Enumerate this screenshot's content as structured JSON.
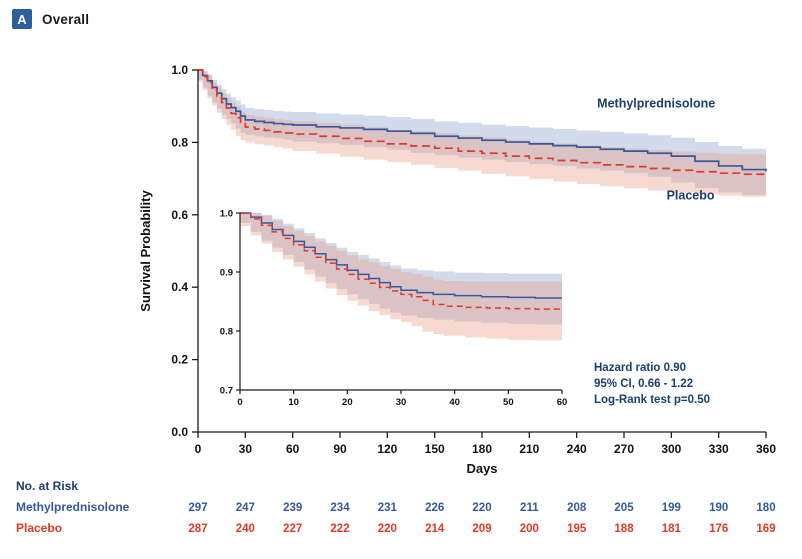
{
  "header": {
    "panel_label": "A",
    "title": "Overall"
  },
  "chart_data": {
    "type": "line",
    "subtype": "kaplan-meier",
    "title": "Overall",
    "xlabel": "Days",
    "ylabel": "Survival Probability",
    "xlim": [
      0,
      360
    ],
    "ylim": [
      0.0,
      1.0
    ],
    "xticks": [
      0,
      30,
      60,
      90,
      120,
      150,
      180,
      210,
      240,
      270,
      300,
      330,
      360
    ],
    "yticks": [
      0.0,
      0.2,
      0.4,
      0.6,
      0.8,
      1.0
    ],
    "grid": false,
    "colors": {
      "navy": "#1c3e6e",
      "axis": "#1a1a1a"
    },
    "series": [
      {
        "name": "Methylprednisolone",
        "color": "#33599f",
        "band_color": "rgba(125,152,199,0.35)",
        "style": "solid",
        "label_pos": [
          253,
          0.897
        ],
        "points": [
          [
            0,
            1.0,
            1.0,
            1.0
          ],
          [
            3,
            0.985,
            0.972,
            0.997
          ],
          [
            6,
            0.97,
            0.951,
            0.988
          ],
          [
            9,
            0.952,
            0.929,
            0.973
          ],
          [
            12,
            0.936,
            0.91,
            0.96
          ],
          [
            15,
            0.921,
            0.893,
            0.947
          ],
          [
            18,
            0.906,
            0.876,
            0.934
          ],
          [
            21,
            0.896,
            0.864,
            0.925
          ],
          [
            24,
            0.886,
            0.853,
            0.916
          ],
          [
            27,
            0.873,
            0.838,
            0.905
          ],
          [
            30,
            0.862,
            0.826,
            0.895
          ],
          [
            36,
            0.858,
            0.821,
            0.892
          ],
          [
            42,
            0.855,
            0.817,
            0.889
          ],
          [
            48,
            0.852,
            0.814,
            0.887
          ],
          [
            54,
            0.85,
            0.811,
            0.885
          ],
          [
            60,
            0.848,
            0.808,
            0.884
          ],
          [
            75,
            0.843,
            0.802,
            0.88
          ],
          [
            90,
            0.84,
            0.798,
            0.877
          ],
          [
            105,
            0.836,
            0.793,
            0.874
          ],
          [
            120,
            0.831,
            0.787,
            0.87
          ],
          [
            135,
            0.825,
            0.78,
            0.865
          ],
          [
            150,
            0.817,
            0.771,
            0.858
          ],
          [
            165,
            0.812,
            0.765,
            0.854
          ],
          [
            180,
            0.806,
            0.758,
            0.849
          ],
          [
            195,
            0.801,
            0.752,
            0.845
          ],
          [
            210,
            0.796,
            0.746,
            0.841
          ],
          [
            225,
            0.791,
            0.74,
            0.837
          ],
          [
            240,
            0.787,
            0.735,
            0.833
          ],
          [
            255,
            0.781,
            0.728,
            0.829
          ],
          [
            270,
            0.776,
            0.722,
            0.825
          ],
          [
            285,
            0.77,
            0.715,
            0.82
          ],
          [
            300,
            0.762,
            0.705,
            0.813
          ],
          [
            315,
            0.748,
            0.689,
            0.801
          ],
          [
            330,
            0.735,
            0.674,
            0.79
          ],
          [
            345,
            0.725,
            0.662,
            0.782
          ],
          [
            360,
            0.72,
            0.655,
            0.779
          ]
        ]
      },
      {
        "name": "Placebo",
        "color": "#dd3a28",
        "band_color": "rgba(233,160,139,0.40)",
        "style": "dashed",
        "label_pos": [
          297,
          0.642
        ],
        "points": [
          [
            0,
            1.0,
            1.0,
            1.0
          ],
          [
            3,
            0.982,
            0.968,
            0.995
          ],
          [
            6,
            0.965,
            0.945,
            0.984
          ],
          [
            9,
            0.945,
            0.922,
            0.967
          ],
          [
            12,
            0.928,
            0.902,
            0.952
          ],
          [
            15,
            0.91,
            0.882,
            0.936
          ],
          [
            18,
            0.895,
            0.865,
            0.923
          ],
          [
            21,
            0.88,
            0.848,
            0.91
          ],
          [
            24,
            0.868,
            0.835,
            0.899
          ],
          [
            27,
            0.852,
            0.817,
            0.884
          ],
          [
            30,
            0.842,
            0.806,
            0.875
          ],
          [
            36,
            0.837,
            0.8,
            0.871
          ],
          [
            42,
            0.833,
            0.795,
            0.868
          ],
          [
            48,
            0.829,
            0.791,
            0.864
          ],
          [
            54,
            0.826,
            0.787,
            0.862
          ],
          [
            60,
            0.823,
            0.783,
            0.859
          ],
          [
            75,
            0.817,
            0.776,
            0.854
          ],
          [
            90,
            0.811,
            0.769,
            0.849
          ],
          [
            105,
            0.803,
            0.76,
            0.842
          ],
          [
            120,
            0.796,
            0.752,
            0.836
          ],
          [
            135,
            0.79,
            0.745,
            0.831
          ],
          [
            150,
            0.784,
            0.738,
            0.826
          ],
          [
            165,
            0.776,
            0.729,
            0.819
          ],
          [
            180,
            0.77,
            0.722,
            0.814
          ],
          [
            195,
            0.762,
            0.713,
            0.807
          ],
          [
            210,
            0.756,
            0.706,
            0.802
          ],
          [
            225,
            0.75,
            0.699,
            0.797
          ],
          [
            240,
            0.744,
            0.692,
            0.792
          ],
          [
            255,
            0.738,
            0.685,
            0.787
          ],
          [
            270,
            0.733,
            0.679,
            0.783
          ],
          [
            285,
            0.728,
            0.673,
            0.779
          ],
          [
            300,
            0.723,
            0.667,
            0.775
          ],
          [
            315,
            0.719,
            0.662,
            0.772
          ],
          [
            330,
            0.715,
            0.657,
            0.769
          ],
          [
            345,
            0.712,
            0.653,
            0.767
          ],
          [
            360,
            0.71,
            0.65,
            0.766
          ]
        ]
      }
    ],
    "inset": {
      "xlim": [
        0,
        60
      ],
      "ylim": [
        0.7,
        1.0
      ],
      "xticks": [
        0,
        10,
        20,
        30,
        40,
        50,
        60
      ],
      "yticks": [
        0.7,
        0.8,
        0.9,
        1.0
      ],
      "series": [
        {
          "name": "Methylprednisolone",
          "color": "#33599f",
          "band_color": "rgba(125,152,199,0.35)",
          "style": "solid",
          "points": [
            [
              0,
              1.0,
              1.0,
              1.0
            ],
            [
              2,
              0.993,
              0.983,
              1.0
            ],
            [
              4,
              0.983,
              0.968,
              0.997
            ],
            [
              6,
              0.972,
              0.953,
              0.99
            ],
            [
              8,
              0.962,
              0.941,
              0.982
            ],
            [
              10,
              0.952,
              0.929,
              0.974
            ],
            [
              12,
              0.942,
              0.917,
              0.966
            ],
            [
              14,
              0.931,
              0.904,
              0.957
            ],
            [
              16,
              0.921,
              0.892,
              0.949
            ],
            [
              18,
              0.912,
              0.881,
              0.941
            ],
            [
              20,
              0.903,
              0.871,
              0.934
            ],
            [
              22,
              0.896,
              0.862,
              0.929
            ],
            [
              24,
              0.889,
              0.854,
              0.923
            ],
            [
              26,
              0.882,
              0.846,
              0.917
            ],
            [
              28,
              0.875,
              0.838,
              0.911
            ],
            [
              30,
              0.869,
              0.831,
              0.906
            ],
            [
              33,
              0.865,
              0.826,
              0.903
            ],
            [
              36,
              0.862,
              0.822,
              0.901
            ],
            [
              40,
              0.86,
              0.819,
              0.899
            ],
            [
              45,
              0.858,
              0.816,
              0.898
            ],
            [
              50,
              0.857,
              0.814,
              0.897
            ],
            [
              55,
              0.856,
              0.812,
              0.897
            ],
            [
              60,
              0.856,
              0.811,
              0.897
            ]
          ]
        },
        {
          "name": "Placebo",
          "color": "#dd3a28",
          "band_color": "rgba(233,160,139,0.40)",
          "style": "dashed",
          "points": [
            [
              0,
              1.0,
              1.0,
              1.0
            ],
            [
              2,
              0.99,
              0.978,
              1.0
            ],
            [
              4,
              0.979,
              0.962,
              0.995
            ],
            [
              6,
              0.968,
              0.948,
              0.987
            ],
            [
              8,
              0.957,
              0.934,
              0.978
            ],
            [
              10,
              0.946,
              0.921,
              0.97
            ],
            [
              12,
              0.936,
              0.909,
              0.961
            ],
            [
              14,
              0.925,
              0.896,
              0.952
            ],
            [
              16,
              0.915,
              0.884,
              0.944
            ],
            [
              18,
              0.905,
              0.872,
              0.936
            ],
            [
              20,
              0.896,
              0.861,
              0.928
            ],
            [
              22,
              0.888,
              0.851,
              0.921
            ],
            [
              24,
              0.881,
              0.843,
              0.916
            ],
            [
              26,
              0.874,
              0.834,
              0.91
            ],
            [
              28,
              0.868,
              0.827,
              0.905
            ],
            [
              30,
              0.862,
              0.82,
              0.9
            ],
            [
              32,
              0.858,
              0.815,
              0.897
            ],
            [
              34,
              0.852,
              0.808,
              0.892
            ],
            [
              36,
              0.845,
              0.799,
              0.887
            ],
            [
              38,
              0.842,
              0.795,
              0.885
            ],
            [
              42,
              0.84,
              0.792,
              0.884
            ],
            [
              46,
              0.839,
              0.789,
              0.884
            ],
            [
              50,
              0.838,
              0.787,
              0.884
            ],
            [
              55,
              0.837,
              0.785,
              0.884
            ],
            [
              60,
              0.837,
              0.784,
              0.884
            ]
          ]
        }
      ]
    },
    "annotations": [
      "Hazard ratio 0.90",
      "95% CI, 0.66 - 1.22",
      "Log-Rank test p=0.50"
    ],
    "risk_table": {
      "title": "No. at Risk",
      "rows": [
        {
          "label": "Methylprednisolone",
          "color": "#33599f",
          "values": [
            297,
            247,
            239,
            234,
            231,
            226,
            220,
            211,
            208,
            205,
            199,
            190,
            180
          ]
        },
        {
          "label": "Placebo",
          "color": "#dd3a28",
          "values": [
            287,
            240,
            227,
            222,
            220,
            214,
            209,
            200,
            195,
            188,
            181,
            176,
            169
          ]
        }
      ]
    }
  }
}
